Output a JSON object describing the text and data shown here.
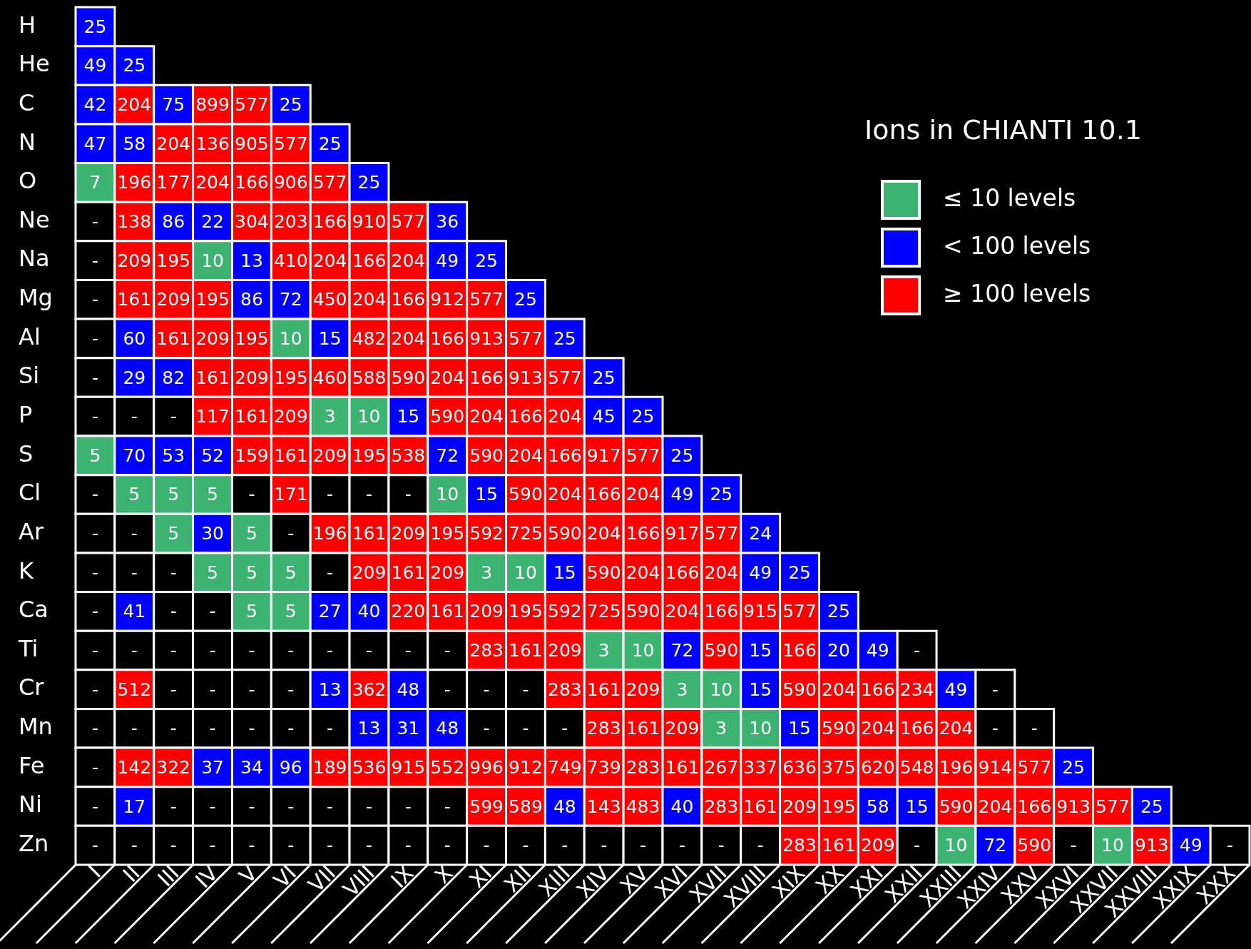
{
  "chart_data": {
    "type": "heatmap",
    "title": "Ions in CHIANTI 10.1",
    "annotations": [
      "≤ 10 levels",
      "< 100 levels",
      "≥ 100 levels"
    ],
    "categories": [
      "I",
      "II",
      "III",
      "IV",
      "V",
      "VI",
      "VII",
      "VIII",
      "IX",
      "X",
      "XI",
      "XII",
      "XIII",
      "XIV",
      "XV",
      "XVI",
      "XVII",
      "XVIII",
      "XIX",
      "XX",
      "XXI",
      "XXII",
      "XXIII",
      "XXIV",
      "XXV",
      "XXVI",
      "XXVII",
      "XXVIII",
      "XXIX",
      "XXX"
    ],
    "y_categories": [
      "H",
      "He",
      "C",
      "N",
      "O",
      "Ne",
      "Na",
      "Mg",
      "Al",
      "Si",
      "P",
      "S",
      "Cl",
      "Ar",
      "K",
      "Ca",
      "Ti",
      "Cr",
      "Mn",
      "Fe",
      "Ni",
      "Zn"
    ],
    "cells": [
      [
        25,
        null,
        null,
        null,
        null,
        null,
        null,
        null,
        null,
        null,
        null,
        null,
        null,
        null,
        null,
        null,
        null,
        null,
        null,
        null,
        null,
        null,
        null,
        null,
        null,
        null,
        null,
        null,
        null,
        null
      ],
      [
        49,
        25,
        null,
        null,
        null,
        null,
        null,
        null,
        null,
        null,
        null,
        null,
        null,
        null,
        null,
        null,
        null,
        null,
        null,
        null,
        null,
        null,
        null,
        null,
        null,
        null,
        null,
        null,
        null,
        null
      ],
      [
        42,
        204,
        75,
        899,
        577,
        25,
        null,
        null,
        null,
        null,
        null,
        null,
        null,
        null,
        null,
        null,
        null,
        null,
        null,
        null,
        null,
        null,
        null,
        null,
        null,
        null,
        null,
        null,
        null,
        null
      ],
      [
        47,
        58,
        204,
        136,
        905,
        577,
        25,
        null,
        null,
        null,
        null,
        null,
        null,
        null,
        null,
        null,
        null,
        null,
        null,
        null,
        null,
        null,
        null,
        null,
        null,
        null,
        null,
        null,
        null,
        null
      ],
      [
        7,
        196,
        177,
        204,
        166,
        906,
        577,
        25,
        null,
        null,
        null,
        null,
        null,
        null,
        null,
        null,
        null,
        null,
        null,
        null,
        null,
        null,
        null,
        null,
        null,
        null,
        null,
        null,
        null,
        null
      ],
      [
        null,
        138,
        86,
        22,
        304,
        203,
        166,
        910,
        577,
        36,
        null,
        null,
        null,
        null,
        null,
        null,
        null,
        null,
        null,
        null,
        null,
        null,
        null,
        null,
        null,
        null,
        null,
        null,
        null,
        null
      ],
      [
        null,
        209,
        195,
        10,
        13,
        410,
        204,
        166,
        204,
        49,
        25,
        null,
        null,
        null,
        null,
        null,
        null,
        null,
        null,
        null,
        null,
        null,
        null,
        null,
        null,
        null,
        null,
        null,
        null,
        null
      ],
      [
        null,
        161,
        209,
        195,
        86,
        72,
        450,
        204,
        166,
        912,
        577,
        25,
        null,
        null,
        null,
        null,
        null,
        null,
        null,
        null,
        null,
        null,
        null,
        null,
        null,
        null,
        null,
        null,
        null,
        null
      ],
      [
        null,
        60,
        161,
        209,
        195,
        10,
        15,
        482,
        204,
        166,
        913,
        577,
        25,
        null,
        null,
        null,
        null,
        null,
        null,
        null,
        null,
        null,
        null,
        null,
        null,
        null,
        null,
        null,
        null,
        null
      ],
      [
        null,
        29,
        82,
        161,
        209,
        195,
        460,
        588,
        590,
        204,
        166,
        913,
        577,
        25,
        null,
        null,
        null,
        null,
        null,
        null,
        null,
        null,
        null,
        null,
        null,
        null,
        null,
        null,
        null,
        null
      ],
      [
        null,
        null,
        null,
        117,
        161,
        209,
        3,
        10,
        15,
        590,
        204,
        166,
        204,
        45,
        25,
        null,
        null,
        null,
        null,
        null,
        null,
        null,
        null,
        null,
        null,
        null,
        null,
        null,
        null,
        null
      ],
      [
        5,
        70,
        53,
        52,
        159,
        161,
        209,
        195,
        538,
        72,
        590,
        204,
        166,
        917,
        577,
        25,
        null,
        null,
        null,
        null,
        null,
        null,
        null,
        null,
        null,
        null,
        null,
        null,
        null,
        null
      ],
      [
        null,
        5,
        5,
        5,
        null,
        171,
        null,
        null,
        null,
        10,
        15,
        590,
        204,
        166,
        204,
        49,
        25,
        null,
        null,
        null,
        null,
        null,
        null,
        null,
        null,
        null,
        null,
        null,
        null,
        null
      ],
      [
        null,
        null,
        5,
        30,
        5,
        null,
        196,
        161,
        209,
        195,
        592,
        725,
        590,
        204,
        166,
        917,
        577,
        24,
        null,
        null,
        null,
        null,
        null,
        null,
        null,
        null,
        null,
        null,
        null,
        null
      ],
      [
        null,
        null,
        null,
        5,
        5,
        5,
        null,
        209,
        161,
        209,
        3,
        10,
        15,
        590,
        204,
        166,
        204,
        49,
        25,
        null,
        null,
        null,
        null,
        null,
        null,
        null,
        null,
        null,
        null,
        null
      ],
      [
        null,
        41,
        null,
        null,
        5,
        5,
        27,
        40,
        220,
        161,
        209,
        195,
        592,
        725,
        590,
        204,
        166,
        915,
        577,
        25,
        null,
        null,
        null,
        null,
        null,
        null,
        null,
        null,
        null,
        null
      ],
      [
        null,
        null,
        null,
        null,
        null,
        null,
        null,
        null,
        null,
        null,
        283,
        161,
        209,
        3,
        10,
        72,
        590,
        15,
        166,
        20,
        49,
        null,
        null,
        null,
        null,
        null,
        null,
        null,
        null,
        null
      ],
      [
        null,
        512,
        null,
        null,
        null,
        null,
        13,
        362,
        48,
        null,
        null,
        null,
        283,
        161,
        209,
        3,
        10,
        15,
        590,
        204,
        166,
        234,
        49,
        null,
        null,
        null,
        null,
        null,
        null,
        null
      ],
      [
        null,
        null,
        null,
        null,
        null,
        null,
        null,
        13,
        31,
        48,
        null,
        null,
        null,
        283,
        161,
        209,
        3,
        10,
        15,
        590,
        204,
        166,
        204,
        null,
        null,
        null,
        null,
        null,
        null,
        null
      ],
      [
        null,
        142,
        322,
        37,
        34,
        96,
        189,
        536,
        915,
        552,
        996,
        912,
        749,
        739,
        283,
        161,
        267,
        337,
        636,
        375,
        620,
        548,
        196,
        914,
        577,
        25,
        null,
        null,
        null,
        null
      ],
      [
        null,
        17,
        null,
        null,
        null,
        null,
        null,
        null,
        null,
        null,
        599,
        589,
        48,
        143,
        483,
        40,
        283,
        161,
        209,
        195,
        58,
        15,
        590,
        204,
        166,
        913,
        577,
        25,
        null,
        null
      ],
      [
        null,
        null,
        null,
        null,
        null,
        null,
        null,
        null,
        null,
        null,
        null,
        null,
        null,
        null,
        null,
        null,
        null,
        null,
        283,
        161,
        209,
        null,
        10,
        72,
        590,
        null,
        10,
        913,
        49,
        null
      ]
    ],
    "cell_labels": [
      [
        "25",
        null,
        null,
        null,
        null,
        null,
        null,
        null,
        null,
        null,
        null,
        null,
        null,
        null,
        null,
        null,
        null,
        null,
        null,
        null,
        null,
        null,
        null,
        null,
        null,
        null,
        null,
        null,
        null,
        null
      ],
      [
        "49",
        "25",
        null,
        null,
        null,
        null,
        null,
        null,
        null,
        null,
        null,
        null,
        null,
        null,
        null,
        null,
        null,
        null,
        null,
        null,
        null,
        null,
        null,
        null,
        null,
        null,
        null,
        null,
        null,
        null
      ],
      [
        "42",
        "204",
        "75",
        "899",
        "577",
        "25",
        null,
        null,
        null,
        null,
        null,
        null,
        null,
        null,
        null,
        null,
        null,
        null,
        null,
        null,
        null,
        null,
        null,
        null,
        null,
        null,
        null,
        null,
        null,
        null
      ],
      [
        "47",
        "58",
        "204",
        "136",
        "905",
        "577",
        "25",
        null,
        null,
        null,
        null,
        null,
        null,
        null,
        null,
        null,
        null,
        null,
        null,
        null,
        null,
        null,
        null,
        null,
        null,
        null,
        null,
        null,
        null,
        null
      ],
      [
        "7",
        "196",
        "177",
        "204",
        "166",
        "906",
        "577",
        "25",
        null,
        null,
        null,
        null,
        null,
        null,
        null,
        null,
        null,
        null,
        null,
        null,
        null,
        null,
        null,
        null,
        null,
        null,
        null,
        null,
        null,
        null
      ],
      [
        "-",
        "138",
        "86",
        "22",
        "304",
        "203",
        "166",
        "910",
        "577",
        "36",
        null,
        null,
        null,
        null,
        null,
        null,
        null,
        null,
        null,
        null,
        null,
        null,
        null,
        null,
        null,
        null,
        null,
        null,
        null,
        null
      ],
      [
        "-",
        "209",
        "195",
        "10",
        "13",
        "410",
        "204",
        "166",
        "204",
        "49",
        "25",
        null,
        null,
        null,
        null,
        null,
        null,
        null,
        null,
        null,
        null,
        null,
        null,
        null,
        null,
        null,
        null,
        null,
        null,
        null
      ],
      [
        "-",
        "161",
        "209",
        "195",
        "86",
        "72",
        "450",
        "204",
        "166",
        "912",
        "577",
        "25",
        null,
        null,
        null,
        null,
        null,
        null,
        null,
        null,
        null,
        null,
        null,
        null,
        null,
        null,
        null,
        null,
        null,
        null
      ],
      [
        "-",
        "60",
        "161",
        "209",
        "195",
        "10",
        "15",
        "482",
        "204",
        "166",
        "913",
        "577",
        "25",
        null,
        null,
        null,
        null,
        null,
        null,
        null,
        null,
        null,
        null,
        null,
        null,
        null,
        null,
        null,
        null,
        null
      ],
      [
        "-",
        "29",
        "82",
        "161",
        "209",
        "195",
        "460",
        "588",
        "590",
        "204",
        "166",
        "913",
        "577",
        "25",
        null,
        null,
        null,
        null,
        null,
        null,
        null,
        null,
        null,
        null,
        null,
        null,
        null,
        null,
        null,
        null
      ],
      [
        "-",
        "-",
        "-",
        "117",
        "161",
        "209",
        "3",
        "10",
        "15",
        "590",
        "204",
        "166",
        "204",
        "45",
        "25",
        null,
        null,
        null,
        null,
        null,
        null,
        null,
        null,
        null,
        null,
        null,
        null,
        null,
        null,
        null
      ],
      [
        "5",
        "70",
        "53",
        "52",
        "159",
        "161",
        "209",
        "195",
        "538",
        "72",
        "590",
        "204",
        "166",
        "917",
        "577",
        "25",
        null,
        null,
        null,
        null,
        null,
        null,
        null,
        null,
        null,
        null,
        null,
        null,
        null,
        null
      ],
      [
        "-",
        "5",
        "5",
        "5",
        "-",
        "171",
        "-",
        "-",
        "-",
        "10",
        "15",
        "590",
        "204",
        "166",
        "204",
        "49",
        "25",
        null,
        null,
        null,
        null,
        null,
        null,
        null,
        null,
        null,
        null,
        null,
        null,
        null
      ],
      [
        "-",
        "-",
        "5",
        "30",
        "5",
        "-",
        "196",
        "161",
        "209",
        "195",
        "592",
        "725",
        "590",
        "204",
        "166",
        "917",
        "577",
        "24",
        null,
        null,
        null,
        null,
        null,
        null,
        null,
        null,
        null,
        null,
        null,
        null
      ],
      [
        "-",
        "-",
        "-",
        "5",
        "5",
        "5",
        "-",
        "209",
        "161",
        "209",
        "3",
        "10",
        "15",
        "590",
        "204",
        "166",
        "204",
        "49",
        "25",
        null,
        null,
        null,
        null,
        null,
        null,
        null,
        null,
        null,
        null,
        null
      ],
      [
        "-",
        "41",
        "-",
        "-",
        "5",
        "5",
        "27",
        "40",
        "220",
        "161",
        "209",
        "195",
        "592",
        "725",
        "590",
        "204",
        "166",
        "915",
        "577",
        "25",
        null,
        null,
        null,
        null,
        null,
        null,
        null,
        null,
        null,
        null
      ],
      [
        "-",
        "-",
        "-",
        "-",
        "-",
        "-",
        "-",
        "-",
        "-",
        "-",
        "283",
        "161",
        "209",
        "3",
        "10",
        "72",
        "590",
        "15",
        "166",
        "20",
        "49",
        "-",
        null,
        null,
        null,
        null,
        null,
        null,
        null,
        null
      ],
      [
        "-",
        "512",
        "-",
        "-",
        "-",
        "-",
        "13",
        "362",
        "48",
        "-",
        "-",
        "-",
        "283",
        "161",
        "209",
        "3",
        "10",
        "15",
        "590",
        "204",
        "166",
        "234",
        "49",
        "-",
        null,
        null,
        null,
        null,
        null,
        null
      ],
      [
        "-",
        "-",
        "-",
        "-",
        "-",
        "-",
        "-",
        "13",
        "31",
        "48",
        "-",
        "-",
        "-",
        "283",
        "161",
        "209",
        "3",
        "10",
        "15",
        "590",
        "204",
        "166",
        "204",
        "-",
        "-",
        null,
        null,
        null,
        null,
        null
      ],
      [
        "-",
        "142",
        "322",
        "37",
        "34",
        "96",
        "189",
        "536",
        "915",
        "552",
        "996",
        "912",
        "749",
        "739",
        "283",
        "161",
        "267",
        "337",
        "636",
        "375",
        "620",
        "548",
        "196",
        "914",
        "577",
        "25",
        null,
        null,
        null,
        null
      ],
      [
        "-",
        "17",
        "-",
        "-",
        "-",
        "-",
        "-",
        "-",
        "-",
        "-",
        "599",
        "589",
        "48",
        "143",
        "483",
        "40",
        "283",
        "161",
        "209",
        "195",
        "58",
        "15",
        "590",
        "204",
        "166",
        "913",
        "577",
        "25",
        null,
        null
      ],
      [
        "-",
        "-",
        "-",
        "-",
        "-",
        "-",
        "-",
        "-",
        "-",
        "-",
        "-",
        "-",
        "-",
        "-",
        "-",
        "-",
        "-",
        "-",
        "283",
        "161",
        "209",
        "-",
        "10",
        "72",
        "590",
        "-",
        "10",
        "913",
        "49",
        "-"
      ]
    ],
    "colors": [
      [
        "#0000ff"
      ],
      [
        "#0000ff",
        "#0000ff"
      ],
      [
        "#0000ff",
        "#ff0000",
        "#0000ff",
        "#ff0000",
        "#ff0000",
        "#0000ff"
      ],
      [
        "#0000ff",
        "#0000ff",
        "#ff0000",
        "#ff0000",
        "#ff0000",
        "#ff0000",
        "#0000ff"
      ],
      [
        "#3cb371",
        "#ff0000",
        "#ff0000",
        "#ff0000",
        "#ff0000",
        "#ff0000",
        "#ff0000",
        "#0000ff"
      ],
      [
        null,
        "#ff0000",
        "#0000ff",
        "#0000ff",
        "#ff0000",
        "#ff0000",
        "#ff0000",
        "#ff0000",
        "#ff0000",
        "#0000ff"
      ],
      [
        null,
        "#ff0000",
        "#ff0000",
        "#3cb371",
        "#0000ff",
        "#ff0000",
        "#ff0000",
        "#ff0000",
        "#ff0000",
        "#0000ff",
        "#0000ff"
      ],
      [
        null,
        "#ff0000",
        "#ff0000",
        "#ff0000",
        "#0000ff",
        "#0000ff",
        "#ff0000",
        "#ff0000",
        "#ff0000",
        "#ff0000",
        "#ff0000",
        "#0000ff"
      ],
      [
        null,
        "#0000ff",
        "#ff0000",
        "#ff0000",
        "#ff0000",
        "#3cb371",
        "#0000ff",
        "#ff0000",
        "#ff0000",
        "#ff0000",
        "#ff0000",
        "#ff0000",
        "#0000ff"
      ],
      [
        null,
        "#0000ff",
        "#0000ff",
        "#ff0000",
        "#ff0000",
        "#ff0000",
        "#ff0000",
        "#ff0000",
        "#ff0000",
        "#ff0000",
        "#ff0000",
        "#ff0000",
        "#ff0000",
        "#0000ff"
      ],
      [
        null,
        null,
        null,
        "#ff0000",
        "#ff0000",
        "#ff0000",
        "#3cb371",
        "#3cb371",
        "#0000ff",
        "#ff0000",
        "#ff0000",
        "#ff0000",
        "#ff0000",
        "#0000ff",
        "#0000ff"
      ],
      [
        "#3cb371",
        "#0000ff",
        "#0000ff",
        "#0000ff",
        "#ff0000",
        "#ff0000",
        "#ff0000",
        "#ff0000",
        "#ff0000",
        "#0000ff",
        "#ff0000",
        "#ff0000",
        "#ff0000",
        "#ff0000",
        "#ff0000",
        "#0000ff"
      ],
      [
        null,
        "#3cb371",
        "#3cb371",
        "#3cb371",
        null,
        "#ff0000",
        null,
        null,
        null,
        "#3cb371",
        "#0000ff",
        "#ff0000",
        "#ff0000",
        "#ff0000",
        "#ff0000",
        "#0000ff",
        "#0000ff"
      ],
      [
        null,
        null,
        "#3cb371",
        "#0000ff",
        "#3cb371",
        null,
        "#ff0000",
        "#ff0000",
        "#ff0000",
        "#ff0000",
        "#ff0000",
        "#ff0000",
        "#ff0000",
        "#ff0000",
        "#ff0000",
        "#ff0000",
        "#ff0000",
        "#0000ff"
      ],
      [
        null,
        null,
        null,
        "#3cb371",
        "#3cb371",
        "#3cb371",
        null,
        "#ff0000",
        "#ff0000",
        "#ff0000",
        "#3cb371",
        "#3cb371",
        "#0000ff",
        "#ff0000",
        "#ff0000",
        "#ff0000",
        "#ff0000",
        "#0000ff",
        "#0000ff"
      ],
      [
        null,
        "#0000ff",
        null,
        null,
        "#3cb371",
        "#3cb371",
        "#0000ff",
        "#0000ff",
        "#ff0000",
        "#ff0000",
        "#ff0000",
        "#ff0000",
        "#ff0000",
        "#ff0000",
        "#ff0000",
        "#ff0000",
        "#ff0000",
        "#ff0000",
        "#ff0000",
        "#0000ff"
      ],
      [
        null,
        null,
        null,
        null,
        null,
        null,
        null,
        null,
        null,
        null,
        "#ff0000",
        "#ff0000",
        "#ff0000",
        "#3cb371",
        "#3cb371",
        "#0000ff",
        "#ff0000",
        "#0000ff",
        "#ff0000",
        "#0000ff",
        "#0000ff",
        null
      ],
      [
        null,
        "#ff0000",
        null,
        null,
        null,
        null,
        "#0000ff",
        "#ff0000",
        "#0000ff",
        null,
        null,
        null,
        "#ff0000",
        "#ff0000",
        "#ff0000",
        "#3cb371",
        "#3cb371",
        "#0000ff",
        "#ff0000",
        "#ff0000",
        "#ff0000",
        "#ff0000",
        "#0000ff",
        null
      ],
      [
        null,
        null,
        null,
        null,
        null,
        null,
        null,
        "#0000ff",
        "#0000ff",
        "#0000ff",
        null,
        null,
        null,
        "#ff0000",
        "#ff0000",
        "#ff0000",
        "#3cb371",
        "#3cb371",
        "#0000ff",
        "#ff0000",
        "#ff0000",
        "#ff0000",
        "#ff0000",
        null,
        null
      ],
      [
        null,
        "#ff0000",
        "#ff0000",
        "#0000ff",
        "#0000ff",
        "#0000ff",
        "#ff0000",
        "#ff0000",
        "#ff0000",
        "#ff0000",
        "#ff0000",
        "#ff0000",
        "#ff0000",
        "#ff0000",
        "#ff0000",
        "#ff0000",
        "#ff0000",
        "#ff0000",
        "#ff0000",
        "#ff0000",
        "#ff0000",
        "#ff0000",
        "#ff0000",
        "#ff0000",
        "#ff0000",
        "#0000ff"
      ],
      [
        null,
        "#0000ff",
        null,
        null,
        null,
        null,
        null,
        null,
        null,
        null,
        "#ff0000",
        "#ff0000",
        "#0000ff",
        "#ff0000",
        "#ff0000",
        "#0000ff",
        "#ff0000",
        "#ff0000",
        "#ff0000",
        "#ff0000",
        "#0000ff",
        "#0000ff",
        "#ff0000",
        "#ff0000",
        "#ff0000",
        "#ff0000",
        "#ff0000",
        "#0000ff"
      ],
      [
        null,
        null,
        null,
        null,
        null,
        null,
        null,
        null,
        null,
        null,
        null,
        null,
        null,
        null,
        null,
        null,
        null,
        null,
        "#ff0000",
        "#ff0000",
        "#ff0000",
        null,
        "#3cb371",
        "#0000ff",
        "#ff0000",
        null,
        "#3cb371",
        "#ff0000",
        "#0000ff",
        null
      ]
    ]
  }
}
